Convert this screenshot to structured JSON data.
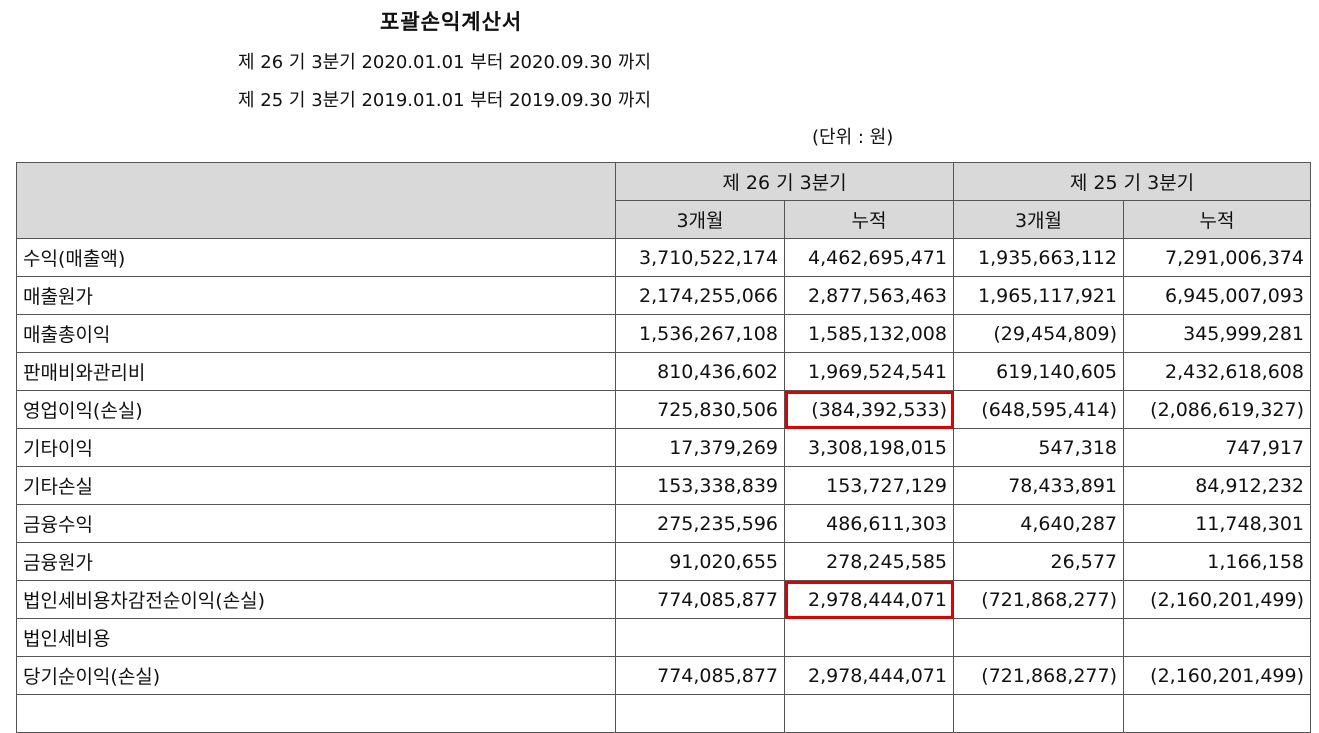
{
  "title": "포괄손익계산서",
  "periods": [
    "제 26 기 3분기 2020.01.01 부터 2020.09.30 까지",
    "제 25 기 3분기 2019.01.01 부터 2019.09.30 까지"
  ],
  "unit": "(단위 : 원)",
  "table": {
    "group_headers": [
      "제 26 기 3분기",
      "제 25 기 3분기"
    ],
    "sub_headers": [
      "3개월",
      "누적",
      "3개월",
      "누적"
    ],
    "rows": [
      {
        "label": "수익(매출액)",
        "values": [
          "3,710,522,174",
          "4,462,695,471",
          "1,935,663,112",
          "7,291,006,374"
        ]
      },
      {
        "label": "매출원가",
        "values": [
          "2,174,255,066",
          "2,877,563,463",
          "1,965,117,921",
          "6,945,007,093"
        ]
      },
      {
        "label": "매출총이익",
        "values": [
          "1,536,267,108",
          "1,585,132,008",
          "(29,454,809)",
          "345,999,281"
        ]
      },
      {
        "label": "판매비와관리비",
        "values": [
          "810,436,602",
          "1,969,524,541",
          "619,140,605",
          "2,432,618,608"
        ]
      },
      {
        "label": "영업이익(손실)",
        "values": [
          "725,830,506",
          "(384,392,533)",
          "(648,595,414)",
          "(2,086,619,327)"
        ],
        "highlight_col": 1
      },
      {
        "label": "기타이익",
        "values": [
          "17,379,269",
          "3,308,198,015",
          "547,318",
          "747,917"
        ]
      },
      {
        "label": "기타손실",
        "values": [
          "153,338,839",
          "153,727,129",
          "78,433,891",
          "84,912,232"
        ]
      },
      {
        "label": "금융수익",
        "values": [
          "275,235,596",
          "486,611,303",
          "4,640,287",
          "11,748,301"
        ]
      },
      {
        "label": "금융원가",
        "values": [
          "91,020,655",
          "278,245,585",
          "26,577",
          "1,166,158"
        ]
      },
      {
        "label": "법인세비용차감전순이익(손실)",
        "values": [
          "774,085,877",
          "2,978,444,071",
          "(721,868,277)",
          "(2,160,201,499)"
        ],
        "highlight_col": 1
      },
      {
        "label": "법인세비용",
        "values": [
          "",
          "",
          "",
          ""
        ]
      },
      {
        "label": "당기순이익(손실)",
        "values": [
          "774,085,877",
          "2,978,444,071",
          "(721,868,277)",
          "(2,160,201,499)"
        ]
      },
      {
        "label": "",
        "values": [
          "",
          "",
          "",
          ""
        ]
      }
    ]
  },
  "highlight_color": "#e00000"
}
